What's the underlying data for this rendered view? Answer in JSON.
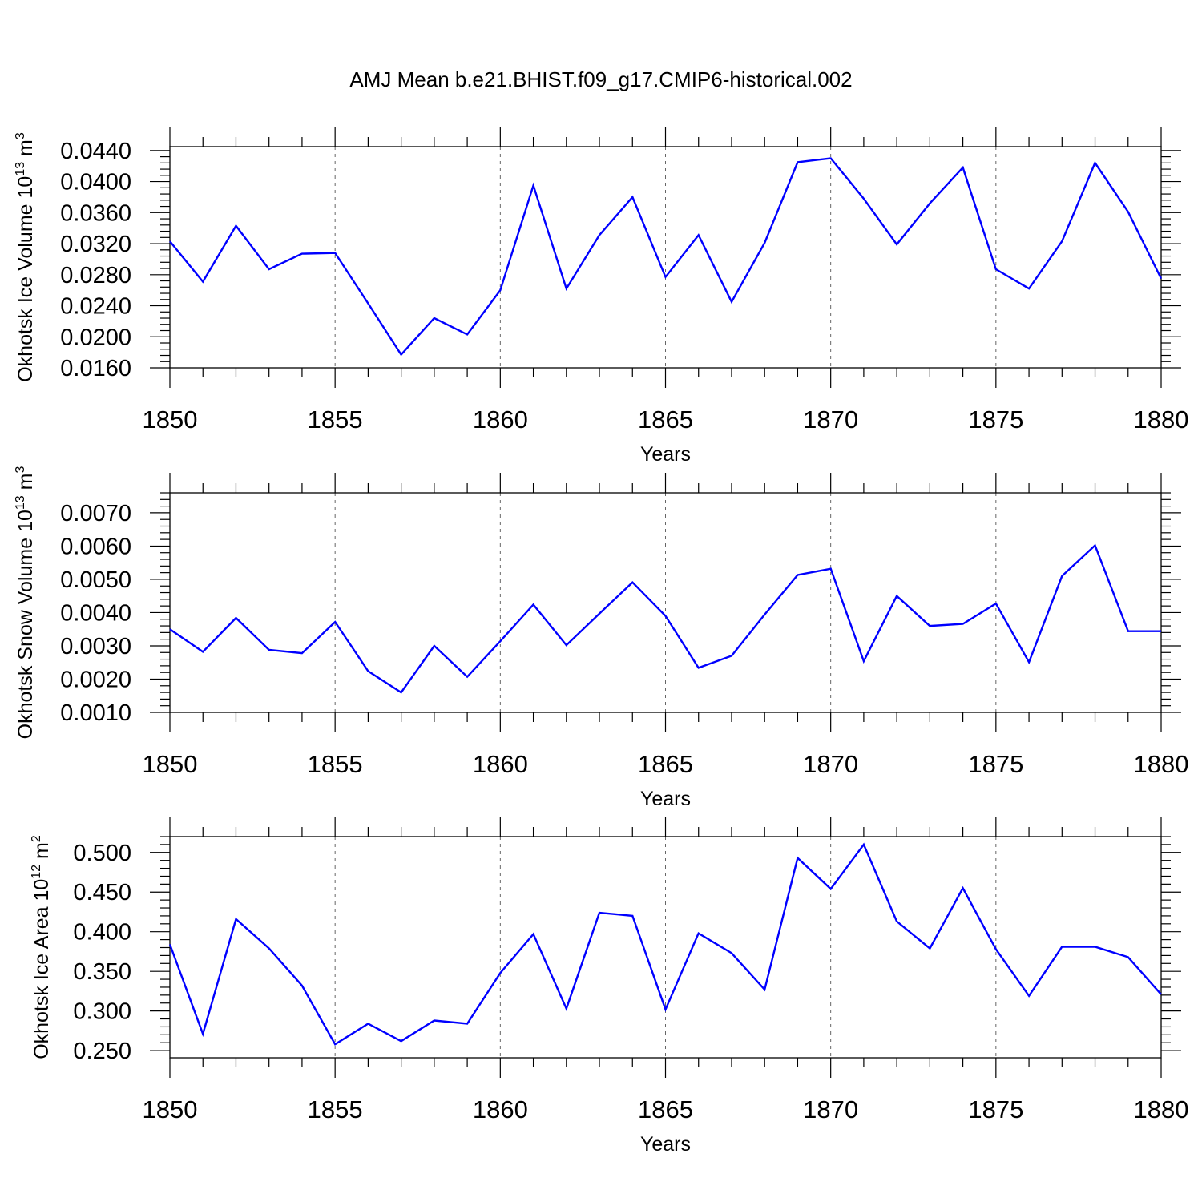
{
  "title": "AMJ Mean b.e21.BHIST.f09_g17.CMIP6-historical.002",
  "chart_data": [
    {
      "type": "line",
      "ylabel": "Okhotsk Ice Volume 10",
      "ylabel_exp": "13",
      "ylabel_unit": "m",
      "ylabel_unit_exp": "3",
      "xlabel": "Years",
      "xlim": [
        1850,
        1880
      ],
      "ylim": [
        0.016,
        0.0445
      ],
      "yticks": [
        "0.0160",
        "0.0200",
        "0.0240",
        "0.0280",
        "0.0320",
        "0.0360",
        "0.0400",
        "0.0440"
      ],
      "ytick_values": [
        0.016,
        0.02,
        0.024,
        0.028,
        0.032,
        0.036,
        0.04,
        0.044
      ],
      "ytick_minor_step": 0.0008,
      "xticks": [
        "1850",
        "1855",
        "1860",
        "1865",
        "1870",
        "1875",
        "1880"
      ],
      "xtick_values": [
        1850,
        1855,
        1860,
        1865,
        1870,
        1875,
        1880
      ],
      "grid": "vertical dashed at major x ticks",
      "x": [
        1850,
        1851,
        1852,
        1853,
        1854,
        1855,
        1856,
        1857,
        1858,
        1859,
        1860,
        1861,
        1862,
        1863,
        1864,
        1865,
        1866,
        1867,
        1868,
        1869,
        1870,
        1871,
        1872,
        1873,
        1874,
        1875,
        1876,
        1877,
        1878,
        1879,
        1880
      ],
      "values": [
        0.0323,
        0.0271,
        0.0343,
        0.0287,
        0.0307,
        0.0308,
        0.0243,
        0.0177,
        0.0224,
        0.0203,
        0.026,
        0.0395,
        0.0262,
        0.0331,
        0.038,
        0.0277,
        0.0331,
        0.0245,
        0.0321,
        0.0425,
        0.043,
        0.0378,
        0.0319,
        0.0372,
        0.0418,
        0.0287,
        0.0262,
        0.0323,
        0.0424,
        0.0361,
        0.0275
      ]
    },
    {
      "type": "line",
      "ylabel": "Okhotsk Snow Volume 10",
      "ylabel_exp": "13",
      "ylabel_unit": "m",
      "ylabel_unit_exp": "3",
      "xlabel": "Years",
      "xlim": [
        1850,
        1880
      ],
      "ylim": [
        0.001,
        0.0076
      ],
      "yticks": [
        "0.0010",
        "0.0020",
        "0.0030",
        "0.0040",
        "0.0050",
        "0.0060",
        "0.0070"
      ],
      "ytick_values": [
        0.001,
        0.002,
        0.003,
        0.004,
        0.005,
        0.006,
        0.007
      ],
      "ytick_minor_step": 0.0002,
      "xticks": [
        "1850",
        "1855",
        "1860",
        "1865",
        "1870",
        "1875",
        "1880"
      ],
      "xtick_values": [
        1850,
        1855,
        1860,
        1865,
        1870,
        1875,
        1880
      ],
      "grid": "vertical dashed at major x ticks",
      "x": [
        1850,
        1851,
        1852,
        1853,
        1854,
        1855,
        1856,
        1857,
        1858,
        1859,
        1860,
        1861,
        1862,
        1863,
        1864,
        1865,
        1866,
        1867,
        1868,
        1869,
        1870,
        1871,
        1872,
        1873,
        1874,
        1875,
        1876,
        1877,
        1878,
        1879,
        1880
      ],
      "values": [
        0.0035,
        0.00282,
        0.00384,
        0.00288,
        0.00278,
        0.00372,
        0.00224,
        0.0016,
        0.003,
        0.00207,
        0.00314,
        0.00424,
        0.00302,
        0.00397,
        0.00491,
        0.0039,
        0.00234,
        0.0027,
        0.00394,
        0.00513,
        0.00532,
        0.00254,
        0.0045,
        0.0036,
        0.00366,
        0.00427,
        0.00251,
        0.0051,
        0.00602,
        0.00344,
        0.00344
      ]
    },
    {
      "type": "line",
      "ylabel": "Okhotsk Ice Area 10",
      "ylabel_exp": "12",
      "ylabel_unit": "m",
      "ylabel_unit_exp": "2",
      "xlabel": "Years",
      "xlim": [
        1850,
        1880
      ],
      "ylim": [
        0.241,
        0.52
      ],
      "yticks": [
        "0.250",
        "0.300",
        "0.350",
        "0.400",
        "0.450",
        "0.500"
      ],
      "ytick_values": [
        0.25,
        0.3,
        0.35,
        0.4,
        0.45,
        0.5
      ],
      "ytick_minor_step": 0.01,
      "xticks": [
        "1850",
        "1855",
        "1860",
        "1865",
        "1870",
        "1875",
        "1880"
      ],
      "xtick_values": [
        1850,
        1855,
        1860,
        1865,
        1870,
        1875,
        1880
      ],
      "grid": "vertical dashed at major x ticks",
      "x": [
        1850,
        1851,
        1852,
        1853,
        1854,
        1855,
        1856,
        1857,
        1858,
        1859,
        1860,
        1861,
        1862,
        1863,
        1864,
        1865,
        1866,
        1867,
        1868,
        1869,
        1870,
        1871,
        1872,
        1873,
        1874,
        1875,
        1876,
        1877,
        1878,
        1879,
        1880
      ],
      "values": [
        0.384,
        0.271,
        0.416,
        0.379,
        0.332,
        0.258,
        0.284,
        0.262,
        0.288,
        0.284,
        0.348,
        0.397,
        0.303,
        0.424,
        0.42,
        0.302,
        0.398,
        0.373,
        0.327,
        0.493,
        0.454,
        0.51,
        0.413,
        0.379,
        0.455,
        0.378,
        0.319,
        0.381,
        0.381,
        0.368,
        0.321
      ]
    }
  ]
}
